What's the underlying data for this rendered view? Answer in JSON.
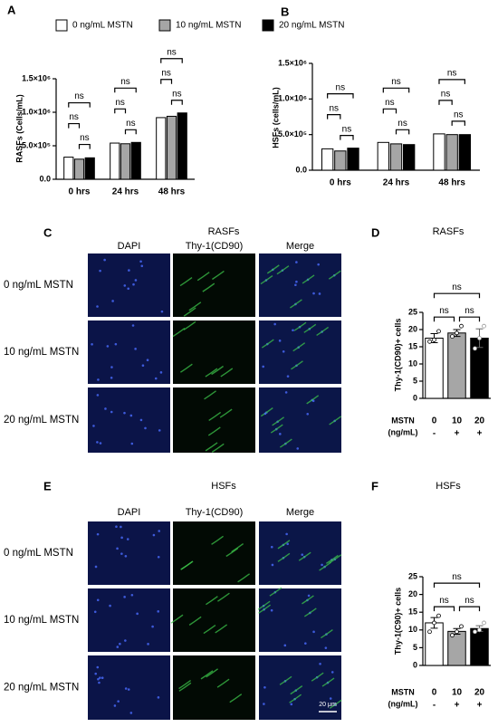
{
  "chart_data": [
    {
      "panel": "A",
      "type": "bar",
      "y_label": "RASFs (Cells/mL)",
      "categories": [
        "0 hrs",
        "24 hrs",
        "48 hrs"
      ],
      "series": [
        {
          "name": "0 ng/mL MSTN",
          "color": "#ffffff",
          "values": [
            330000,
            540000,
            920000
          ]
        },
        {
          "name": "10 ng/mL MSTN",
          "color": "#a6a6a6",
          "values": [
            300000,
            530000,
            940000
          ]
        },
        {
          "name": "20 ng/mL MSTN",
          "color": "#000000",
          "values": [
            320000,
            550000,
            990000
          ]
        }
      ],
      "ylim": [
        0,
        1500000
      ],
      "yticks": [
        {
          "value": 0,
          "label": "0.0"
        },
        {
          "value": 500000,
          "label": "5.0×10⁵"
        },
        {
          "value": 1000000,
          "label": "1.0×10⁶"
        },
        {
          "value": 1500000,
          "label": "1.5×10⁶"
        }
      ],
      "annotations": [
        [
          "ns",
          "ns",
          "ns"
        ],
        [
          "ns",
          "ns",
          "ns"
        ],
        [
          "ns",
          "ns",
          "ns"
        ]
      ]
    },
    {
      "panel": "B",
      "type": "bar",
      "y_label": "HSFs (cells/mL)",
      "categories": [
        "0 hrs",
        "24 hrs",
        "48 hrs"
      ],
      "series": [
        {
          "color": "#ffffff",
          "values": [
            300000,
            390000,
            510000
          ]
        },
        {
          "color": "#a6a6a6",
          "values": [
            270000,
            370000,
            500000
          ]
        },
        {
          "color": "#000000",
          "values": [
            310000,
            360000,
            500000
          ]
        }
      ],
      "ylim": [
        0,
        1500000
      ],
      "yticks": [
        {
          "value": 0,
          "label": "0.0"
        },
        {
          "value": 500000,
          "label": "5.0×10⁵"
        },
        {
          "value": 1000000,
          "label": "1.0×10⁶"
        },
        {
          "value": 1500000,
          "label": "1.5×10⁶"
        }
      ],
      "annotations": [
        [
          "ns",
          "ns",
          "ns"
        ],
        [
          "ns",
          "ns",
          "ns"
        ],
        [
          "ns",
          "ns",
          "ns"
        ]
      ]
    },
    {
      "panel": "D",
      "type": "bar",
      "title": "RASFs",
      "y_label": "Thy-1(CD90)+ cells",
      "x_label": [
        "MSTN",
        "(ng/mL)"
      ],
      "categories": [
        "0",
        "10",
        "20"
      ],
      "treatment": [
        "-",
        "+",
        "+"
      ],
      "values": [
        17.5,
        19,
        17.5
      ],
      "errors": [
        1.3,
        1,
        2.7
      ],
      "points": [
        [
          16.5,
          17,
          19.5
        ],
        [
          18,
          19,
          21
        ],
        [
          14.5,
          17.5,
          21
        ]
      ],
      "colors": [
        "#ffffff",
        "#a6a6a6",
        "#000000"
      ],
      "ylim": [
        0,
        25
      ],
      "yticks": [
        0,
        5,
        10,
        15,
        20,
        25
      ],
      "annotations": [
        "ns",
        "ns",
        "ns"
      ]
    },
    {
      "panel": "F",
      "type": "bar",
      "title": "HSFs",
      "y_label": "Thy-1(C90)+ cells",
      "x_label": [
        "MSTN",
        "(ng/mL)"
      ],
      "categories": [
        "0",
        "10",
        "20"
      ],
      "treatment": [
        "-",
        "+",
        "+"
      ],
      "values": [
        12,
        9.6,
        10.4
      ],
      "errors": [
        1.5,
        0.8,
        0.8
      ],
      "points": [
        [
          9.5,
          12,
          14
        ],
        [
          8.5,
          9.5,
          11
        ],
        [
          9.5,
          10,
          12
        ]
      ],
      "colors": [
        "#ffffff",
        "#a6a6a6",
        "#000000"
      ],
      "ylim": [
        0,
        25
      ],
      "yticks": [
        0,
        5,
        10,
        15,
        20,
        25
      ],
      "annotations": [
        "ns",
        "ns",
        "ns"
      ]
    }
  ],
  "image_panels": [
    {
      "panel": "C",
      "title": "RASFs",
      "columns": [
        "DAPI",
        "Thy-1(CD90)",
        "Merge"
      ],
      "rows": [
        "0 ng/mL MSTN",
        "10 ng/mL MSTN",
        "20 ng/mL MSTN"
      ]
    },
    {
      "panel": "E",
      "title": "HSFs",
      "columns": [
        "DAPI",
        "Thy-1(CD90)",
        "Merge"
      ],
      "rows": [
        "0 ng/mL MSTN",
        "10 ng/mL MSTN",
        "20 ng/mL MSTN"
      ],
      "scale_bar": "20 μm"
    }
  ]
}
